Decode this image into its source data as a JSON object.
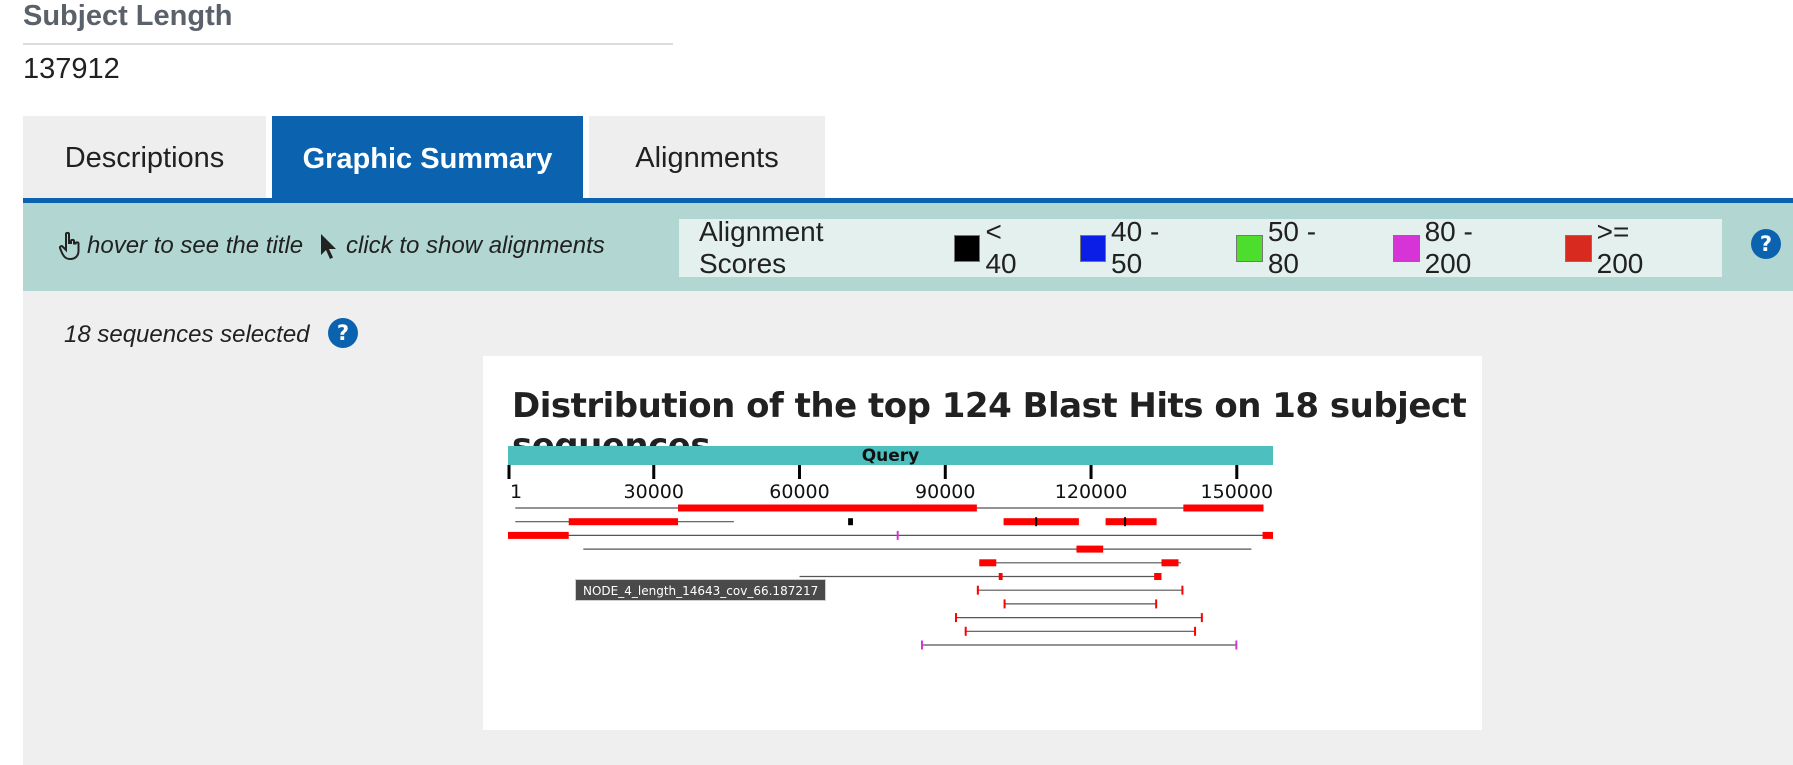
{
  "field": {
    "label": "Subject Length",
    "value": "137912"
  },
  "tabs": [
    {
      "label": "Descriptions",
      "active": false
    },
    {
      "label": "Graphic Summary",
      "active": true
    },
    {
      "label": "Alignments",
      "active": false
    }
  ],
  "legend": {
    "hover_hint": "hover to see the title",
    "click_hint": "click to show alignments",
    "scores_title": "Alignment Scores",
    "scores": [
      {
        "label": "< 40",
        "color": "#000000"
      },
      {
        "label": "40 - 50",
        "color": "#0a1ee8"
      },
      {
        "label": "50 - 80",
        "color": "#4cdd2d"
      },
      {
        "label": "80 - 200",
        "color": "#d634d6"
      },
      {
        "label": ">= 200",
        "color": "#d82a1e"
      }
    ],
    "help_icon": "question-circle-icon"
  },
  "panel": {
    "selected_text": "18 sequences selected"
  },
  "graph": {
    "title": "Distribution of the top 124 Blast Hits on 18 subject sequences",
    "query_label": "Query",
    "tooltip": "NODE_4_length_14643_cov_66.187217",
    "query_color": "#4dbfbf",
    "hit_color": "#ff0000",
    "connector_color": "#555555"
  },
  "chart_data": {
    "type": "alignment_map",
    "axis": {
      "min": 1,
      "max": 157452,
      "ticks": [
        1,
        30000,
        60000,
        90000,
        120000,
        150000
      ],
      "tick_labels": [
        "1",
        "30000",
        "60000",
        "90000",
        "120000",
        "150000"
      ]
    },
    "rows": [
      {
        "span": [
          1500,
          155500
        ],
        "segments": [
          [
            35000,
            96500,
            "#ff0000"
          ],
          [
            139000,
            155500,
            "#ff0000"
          ]
        ]
      },
      {
        "span": [
          1500,
          46500
        ],
        "segments": [
          [
            12500,
            35000,
            "#ff0000"
          ],
          [
            102000,
            117500,
            "#ff0000"
          ],
          [
            123000,
            133500,
            "#ff0000"
          ],
          [
            70000,
            71000,
            "#000000"
          ],
          [
            108500,
            108900,
            "#000000"
          ],
          [
            126800,
            127200,
            "#000000"
          ]
        ]
      },
      {
        "span": [
          0,
          157452
        ],
        "segments": [
          [
            0,
            12500,
            "#ff0000"
          ],
          [
            155300,
            157452,
            "#ff0000"
          ],
          [
            80000,
            80400,
            "#d634d6"
          ]
        ]
      },
      {
        "span": [
          15500,
          153000
        ],
        "segments": [
          [
            117000,
            122500,
            "#ff0000"
          ]
        ]
      },
      {
        "span": [
          97000,
          138500
        ],
        "segments": [
          [
            97000,
            100500,
            "#ff0000"
          ],
          [
            134500,
            138000,
            "#ff0000"
          ]
        ]
      },
      {
        "span": [
          60000,
          134500
        ],
        "segments": [
          [
            101000,
            101800,
            "#ff0000"
          ],
          [
            133000,
            134500,
            "#ff0000"
          ]
        ]
      },
      {
        "span": [
          96500,
          139000
        ],
        "segments": [
          [
            96500,
            96800,
            "#ff0000"
          ],
          [
            138600,
            138900,
            "#ff0000"
          ]
        ]
      },
      {
        "span": [
          102000,
          133500
        ],
        "segments": [
          [
            102000,
            102300,
            "#ff0000"
          ],
          [
            133200,
            133500,
            "#ff0000"
          ]
        ]
      },
      {
        "span": [
          92000,
          143000
        ],
        "segments": [
          [
            92000,
            92300,
            "#ff0000"
          ],
          [
            142600,
            142900,
            "#ff0000"
          ]
        ]
      },
      {
        "span": [
          94000,
          141500
        ],
        "segments": [
          [
            94000,
            94300,
            "#ff0000"
          ],
          [
            141200,
            141500,
            "#ff0000"
          ]
        ]
      },
      {
        "span": [
          85000,
          150000
        ],
        "segments": [
          [
            85000,
            85300,
            "#d634d6"
          ],
          [
            149700,
            150000,
            "#d634d6"
          ]
        ]
      }
    ]
  }
}
